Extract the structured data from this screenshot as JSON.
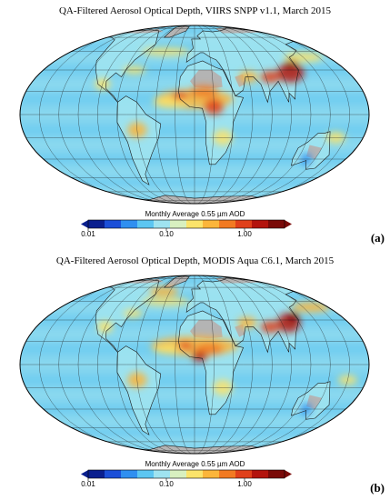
{
  "panels": [
    {
      "id": "a",
      "title": "QA-Filtered Aerosol Optical Depth, VIIRS SNPP v1.1, March 2015",
      "label": "(a)"
    },
    {
      "id": "b",
      "title": "QA-Filtered Aerosol Optical Depth, MODIS Aqua C6.1, March 2015",
      "label": "(b)"
    }
  ],
  "colorbar": {
    "label": "Monthly Average 0.55 µm AOD",
    "ticks": [
      "0.01",
      "0.10",
      "1.00"
    ],
    "scale": "log",
    "range": [
      0.01,
      5.0
    ],
    "colors": [
      "#0a1f8f",
      "#1b4fd8",
      "#2f8ff0",
      "#5cc6f2",
      "#9fe3f0",
      "#d8f0c0",
      "#fbe36a",
      "#fbb53a",
      "#f27a22",
      "#e0401a",
      "#b3140e",
      "#7a0a08"
    ]
  },
  "colors": {
    "ocean_base": "#7fd3ef",
    "land_nodata": "#b4b4b4",
    "grid": "#1a1a1a",
    "coast": "#1a1a1a"
  }
}
